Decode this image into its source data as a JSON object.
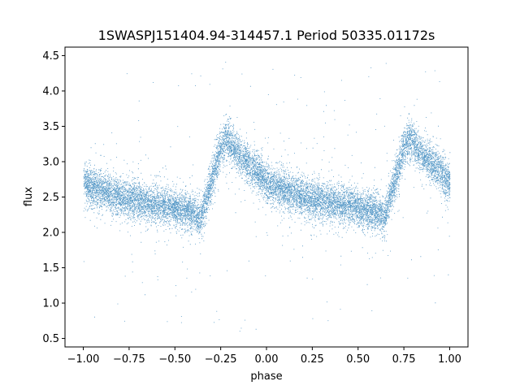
{
  "chart_data": {
    "type": "scatter",
    "title": "1SWASPJ151404.94-314457.1 Period 50335.01172s",
    "xlabel": "phase",
    "ylabel": "flux",
    "xlim": [
      -1.1,
      1.1
    ],
    "ylim": [
      0.38,
      4.62
    ],
    "x_ticks": [
      -1.0,
      -0.75,
      -0.5,
      -0.25,
      0.0,
      0.25,
      0.5,
      0.75,
      1.0
    ],
    "x_tick_labels": [
      "−1.00",
      "−0.75",
      "−0.50",
      "−0.25",
      "0.00",
      "0.25",
      "0.50",
      "0.75",
      "1.00"
    ],
    "y_ticks": [
      0.5,
      1.0,
      1.5,
      2.0,
      2.5,
      3.0,
      3.5,
      4.0,
      4.5
    ],
    "y_tick_labels": [
      "0.5",
      "1.0",
      "1.5",
      "2.0",
      "2.5",
      "3.0",
      "3.5",
      "4.0",
      "4.5"
    ],
    "grid": false,
    "marker_color": "#1f77b4",
    "series": [
      {
        "x": [
          -1.0,
          -0.9,
          -0.8,
          -0.7,
          -0.6,
          -0.5,
          -0.4,
          -0.36,
          -0.3,
          -0.25,
          -0.22,
          -0.15,
          -0.05,
          0.0,
          0.1,
          0.2,
          0.3,
          0.4,
          0.5,
          0.6,
          0.64,
          0.7,
          0.75,
          0.78,
          0.85,
          0.95,
          1.0
        ],
        "y": [
          2.7,
          2.6,
          2.5,
          2.45,
          2.4,
          2.35,
          2.28,
          2.2,
          2.75,
          3.2,
          3.35,
          3.1,
          2.85,
          2.7,
          2.6,
          2.5,
          2.45,
          2.4,
          2.35,
          2.28,
          2.2,
          2.75,
          3.2,
          3.35,
          3.1,
          2.85,
          2.7
        ]
      }
    ]
  }
}
